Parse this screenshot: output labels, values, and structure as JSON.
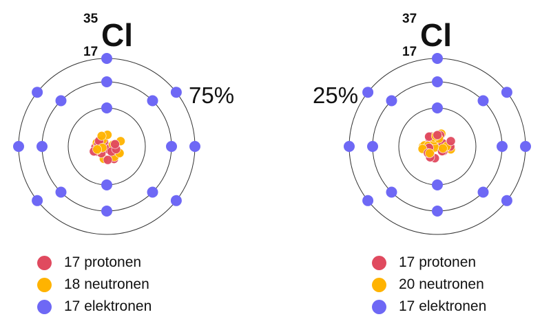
{
  "colors": {
    "proton": "#E04A5F",
    "neutron": "#FFB300",
    "electron": "#6E68F5",
    "orbit": "#333333"
  },
  "atoms": [
    {
      "mass_number": "35",
      "atomic_number": "17",
      "symbol": "Cl",
      "abundance": "75%",
      "electron_shells": [
        2,
        8,
        7
      ],
      "legend": [
        {
          "type": "proton",
          "label": "17 protonen"
        },
        {
          "type": "neutron",
          "label": "18 neutronen"
        },
        {
          "type": "electron",
          "label": "17 elektronen"
        }
      ]
    },
    {
      "mass_number": "37",
      "atomic_number": "17",
      "symbol": "Cl",
      "abundance": "25%",
      "electron_shells": [
        2,
        8,
        7
      ],
      "legend": [
        {
          "type": "proton",
          "label": "17 protonen"
        },
        {
          "type": "neutron",
          "label": "20 neutronen"
        },
        {
          "type": "electron",
          "label": "17 elektronen"
        }
      ]
    }
  ]
}
